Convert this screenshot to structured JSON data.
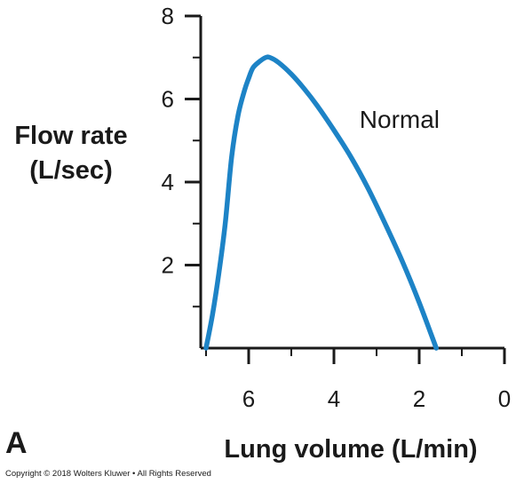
{
  "chart_data": {
    "type": "line",
    "title": "",
    "panel_label": "A",
    "ylabel_lines": [
      "Flow rate",
      "(L/sec)"
    ],
    "xlabel": "Lung volume (L/min)",
    "x_reversed": true,
    "xlim": [
      0,
      7.3
    ],
    "ylim": [
      0,
      8
    ],
    "x_ticks": [
      6,
      4,
      2,
      0
    ],
    "y_ticks": [
      2,
      4,
      6,
      8
    ],
    "x_minor_ticks": [
      7,
      5,
      3,
      1
    ],
    "y_minor_ticks": [
      1,
      3,
      5,
      7
    ],
    "series": [
      {
        "name": "Normal",
        "color": "#1d83c6",
        "x": [
          7.0,
          6.85,
          6.7,
          6.55,
          6.4,
          6.25,
          6.1,
          6.0,
          5.9,
          5.75,
          5.6,
          5.5,
          5.3,
          5.0,
          4.7,
          4.4,
          4.0,
          3.6,
          3.2,
          2.8,
          2.4,
          2.0,
          1.6
        ],
        "y": [
          0.0,
          0.8,
          1.8,
          3.0,
          4.6,
          5.6,
          6.2,
          6.5,
          6.75,
          6.9,
          7.0,
          7.0,
          6.88,
          6.6,
          6.25,
          5.85,
          5.25,
          4.6,
          3.85,
          3.0,
          2.1,
          1.1,
          0.0
        ]
      }
    ],
    "annotations": [
      {
        "text": "Normal",
        "x": 3.4,
        "y": 5.3
      }
    ]
  },
  "footer": {
    "copyright": "Copyright © 2018 Wolters Kluwer • All Rights Reserved"
  }
}
